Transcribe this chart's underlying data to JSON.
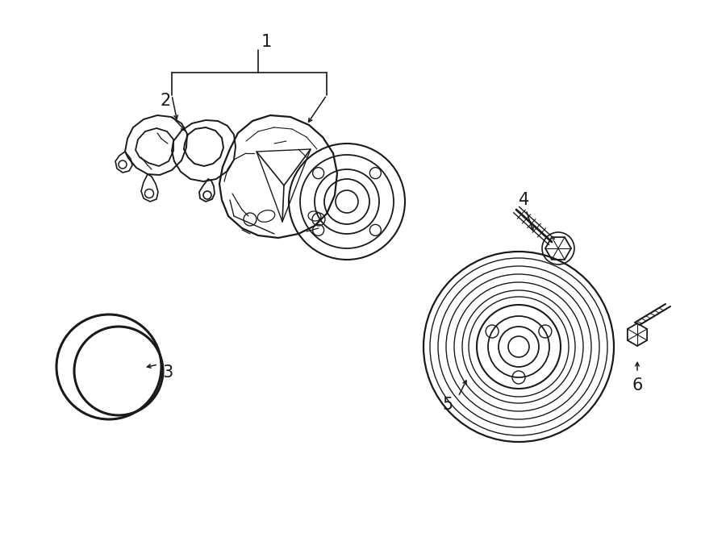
{
  "bg_color": "#ffffff",
  "line_color": "#1a1a1a",
  "text_color": "#1a1a1a",
  "fig_width": 9.0,
  "fig_height": 6.61,
  "dpi": 100
}
